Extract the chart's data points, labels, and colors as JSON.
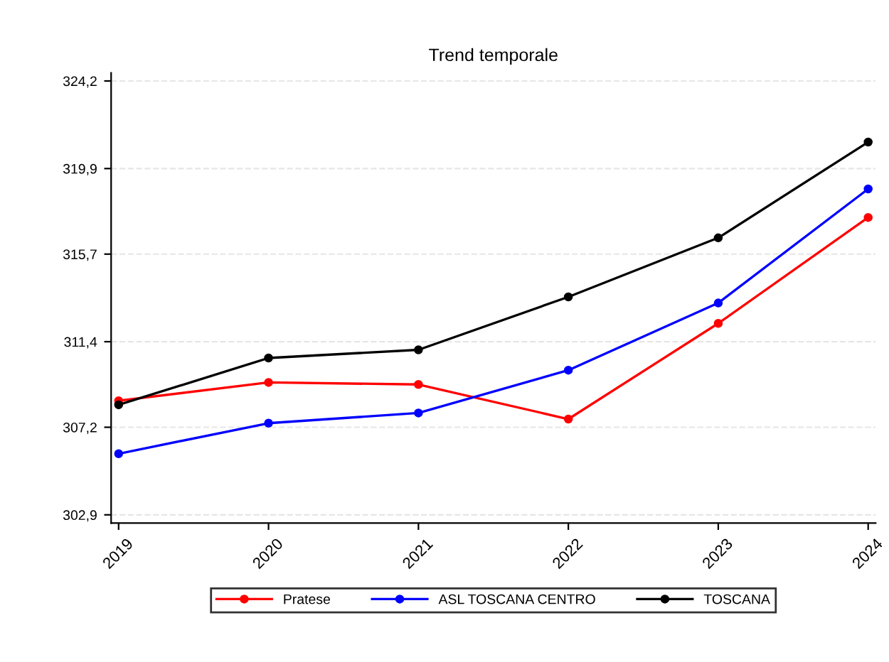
{
  "chart_data": {
    "type": "line",
    "title": "Trend temporale",
    "categories": [
      "2019",
      "2020",
      "2021",
      "2022",
      "2023",
      "2024"
    ],
    "series": [
      {
        "name": "Pratese",
        "color": "#ff0000",
        "values": [
          308.5,
          309.4,
          309.3,
          307.6,
          312.3,
          317.5
        ]
      },
      {
        "name": "ASL TOSCANA CENTRO",
        "color": "#0000ff",
        "values": [
          305.9,
          307.4,
          307.9,
          310.0,
          313.3,
          318.9
        ]
      },
      {
        "name": "TOSCANA",
        "color": "#000000",
        "values": [
          308.3,
          310.6,
          311.0,
          313.6,
          316.5,
          321.2
        ]
      }
    ],
    "ylim": [
      302.5,
      324.6
    ],
    "yticks": [
      {
        "value": 302.9,
        "label": "302,9"
      },
      {
        "value": 307.2,
        "label": "307,2"
      },
      {
        "value": 311.4,
        "label": "311,4"
      },
      {
        "value": 315.7,
        "label": "315,7"
      },
      {
        "value": 319.9,
        "label": "319,9"
      },
      {
        "value": 324.2,
        "label": "324,2"
      }
    ],
    "grid": "y",
    "legend": "bottom",
    "marker": "circle",
    "line_style": "solid"
  }
}
